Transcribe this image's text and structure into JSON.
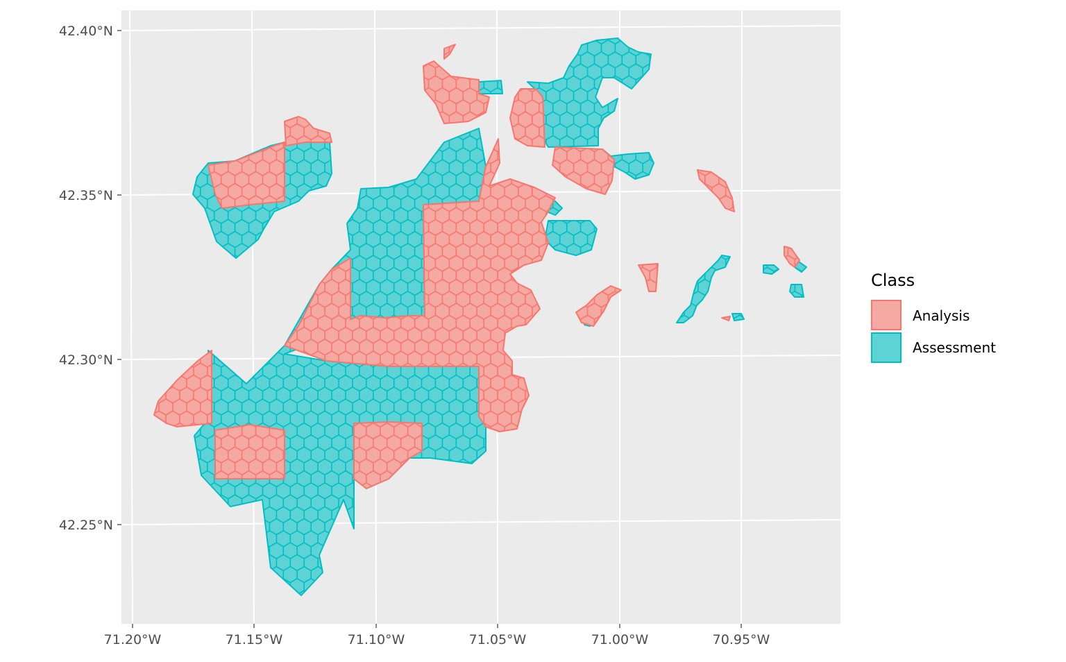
{
  "map": {
    "axis": {
      "y_ticks": [
        {
          "label": "42.40°N"
        },
        {
          "label": "42.35°N"
        },
        {
          "label": "42.30°N"
        },
        {
          "label": "42.25°N"
        }
      ],
      "x_ticks": [
        {
          "label": "71.20°W"
        },
        {
          "label": "71.15°W"
        },
        {
          "label": "71.10°W"
        },
        {
          "label": "71.05°W"
        },
        {
          "label": "71.00°W"
        },
        {
          "label": "70.95°W"
        }
      ]
    },
    "legend": {
      "title": "Class",
      "entries": [
        {
          "label": "Analysis",
          "fill": "#F5A9A3",
          "stroke": "#F8766D"
        },
        {
          "label": "Assessment",
          "fill": "#5ED3D6",
          "stroke": "#00BFC4"
        }
      ]
    },
    "colors": {
      "panel": "#EBEBEB",
      "grid": "#FFFFFF",
      "analysis_fill": "#F5A9A3",
      "analysis_stroke": "#F8766D",
      "assessment_fill": "#5ED3D6",
      "assessment_stroke": "#00BFC4"
    }
  }
}
